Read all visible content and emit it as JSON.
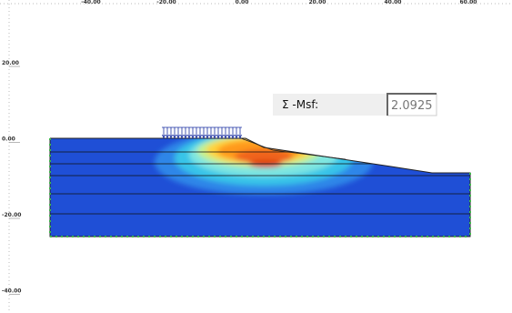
{
  "rulers": {
    "top": [
      "-40.00",
      "-20.00",
      "0.00",
      "20.00",
      "40.00",
      "60.00"
    ],
    "left": [
      "20.00",
      "0.00",
      "-20.00",
      "-40.00"
    ]
  },
  "result": {
    "label": "Σ -Msf:",
    "value": "2.0925"
  }
}
